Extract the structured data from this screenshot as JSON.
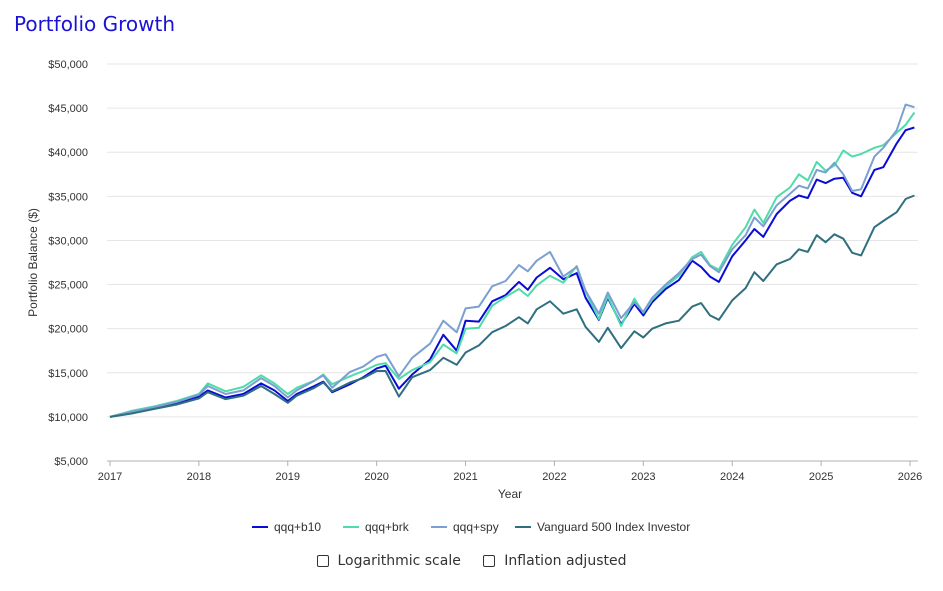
{
  "title": "Portfolio Growth",
  "controls": {
    "log_scale_label": "Logarithmic scale",
    "inflation_label": "Inflation adjusted",
    "log_scale_checked": false,
    "inflation_checked": false
  },
  "chart_data": {
    "type": "line",
    "xlabel": "Year",
    "ylabel": "Portfolio Balance ($)",
    "xlim": [
      2017.0,
      2026.0
    ],
    "ylim": [
      5000,
      50000
    ],
    "x_ticks": [
      2017,
      2018,
      2019,
      2020,
      2021,
      2022,
      2023,
      2024,
      2025,
      2026
    ],
    "y_ticks": [
      5000,
      10000,
      15000,
      20000,
      25000,
      30000,
      35000,
      40000,
      45000,
      50000
    ],
    "y_tick_labels": [
      "$5,000",
      "$10,000",
      "$15,000",
      "$20,000",
      "$25,000",
      "$30,000",
      "$35,000",
      "$40,000",
      "$45,000",
      "$50,000"
    ],
    "grid": "horizontal",
    "legend_position": "bottom",
    "series": [
      {
        "name": "qqq+b10",
        "color": "#0a0bd4",
        "points": [
          [
            2017.0,
            10000
          ],
          [
            2017.25,
            10500
          ],
          [
            2017.5,
            11000
          ],
          [
            2017.75,
            11500
          ],
          [
            2018.0,
            12300
          ],
          [
            2018.1,
            13000
          ],
          [
            2018.3,
            12200
          ],
          [
            2018.5,
            12600
          ],
          [
            2018.7,
            13800
          ],
          [
            2018.85,
            13000
          ],
          [
            2019.0,
            11800
          ],
          [
            2019.1,
            12600
          ],
          [
            2019.3,
            13500
          ],
          [
            2019.4,
            14000
          ],
          [
            2019.5,
            12800
          ],
          [
            2019.7,
            13700
          ],
          [
            2019.85,
            14500
          ],
          [
            2020.0,
            15500
          ],
          [
            2020.1,
            15800
          ],
          [
            2020.25,
            13200
          ],
          [
            2020.4,
            14800
          ],
          [
            2020.6,
            16500
          ],
          [
            2020.75,
            19300
          ],
          [
            2020.9,
            17500
          ],
          [
            2021.0,
            20900
          ],
          [
            2021.15,
            20800
          ],
          [
            2021.3,
            23100
          ],
          [
            2021.45,
            23800
          ],
          [
            2021.6,
            25300
          ],
          [
            2021.7,
            24400
          ],
          [
            2021.8,
            25800
          ],
          [
            2021.95,
            26900
          ],
          [
            2022.1,
            25600
          ],
          [
            2022.25,
            26300
          ],
          [
            2022.35,
            23500
          ],
          [
            2022.5,
            21000
          ],
          [
            2022.6,
            23500
          ],
          [
            2022.75,
            20500
          ],
          [
            2022.9,
            22800
          ],
          [
            2023.0,
            21500
          ],
          [
            2023.1,
            23000
          ],
          [
            2023.25,
            24500
          ],
          [
            2023.4,
            25500
          ],
          [
            2023.55,
            27700
          ],
          [
            2023.65,
            27000
          ],
          [
            2023.75,
            25900
          ],
          [
            2023.85,
            25300
          ],
          [
            2024.0,
            28200
          ],
          [
            2024.15,
            30000
          ],
          [
            2024.25,
            31300
          ],
          [
            2024.35,
            30400
          ],
          [
            2024.5,
            33000
          ],
          [
            2024.65,
            34500
          ],
          [
            2024.75,
            35100
          ],
          [
            2024.85,
            34800
          ],
          [
            2024.95,
            36900
          ],
          [
            2025.05,
            36500
          ],
          [
            2025.15,
            37000
          ],
          [
            2025.25,
            37100
          ],
          [
            2025.35,
            35400
          ],
          [
            2025.45,
            35000
          ],
          [
            2025.6,
            38000
          ],
          [
            2025.7,
            38300
          ],
          [
            2025.85,
            41000
          ],
          [
            2025.95,
            42500
          ],
          [
            2026.05,
            42800
          ]
        ]
      },
      {
        "name": "qqq+brk",
        "color": "#4fdca9",
        "points": [
          [
            2017.0,
            10000
          ],
          [
            2017.25,
            10700
          ],
          [
            2017.5,
            11200
          ],
          [
            2017.75,
            11800
          ],
          [
            2018.0,
            12600
          ],
          [
            2018.1,
            13800
          ],
          [
            2018.3,
            12900
          ],
          [
            2018.5,
            13400
          ],
          [
            2018.7,
            14700
          ],
          [
            2018.85,
            13800
          ],
          [
            2019.0,
            12600
          ],
          [
            2019.1,
            13300
          ],
          [
            2019.3,
            14100
          ],
          [
            2019.4,
            14800
          ],
          [
            2019.5,
            13700
          ],
          [
            2019.7,
            14600
          ],
          [
            2019.85,
            15200
          ],
          [
            2020.0,
            15900
          ],
          [
            2020.1,
            16100
          ],
          [
            2020.25,
            14300
          ],
          [
            2020.4,
            15300
          ],
          [
            2020.6,
            16200
          ],
          [
            2020.75,
            18200
          ],
          [
            2020.9,
            17200
          ],
          [
            2021.0,
            20000
          ],
          [
            2021.15,
            20100
          ],
          [
            2021.3,
            22600
          ],
          [
            2021.45,
            23600
          ],
          [
            2021.6,
            24500
          ],
          [
            2021.7,
            23700
          ],
          [
            2021.8,
            24900
          ],
          [
            2021.95,
            26000
          ],
          [
            2022.1,
            25200
          ],
          [
            2022.25,
            27100
          ],
          [
            2022.35,
            24200
          ],
          [
            2022.5,
            21100
          ],
          [
            2022.6,
            23700
          ],
          [
            2022.75,
            20300
          ],
          [
            2022.9,
            23400
          ],
          [
            2023.0,
            21800
          ],
          [
            2023.1,
            23300
          ],
          [
            2023.25,
            24800
          ],
          [
            2023.4,
            26000
          ],
          [
            2023.55,
            28100
          ],
          [
            2023.65,
            28700
          ],
          [
            2023.75,
            27200
          ],
          [
            2023.85,
            26700
          ],
          [
            2024.0,
            29500
          ],
          [
            2024.15,
            31500
          ],
          [
            2024.25,
            33500
          ],
          [
            2024.35,
            32000
          ],
          [
            2024.5,
            34900
          ],
          [
            2024.65,
            36000
          ],
          [
            2024.75,
            37500
          ],
          [
            2024.85,
            36800
          ],
          [
            2024.95,
            38900
          ],
          [
            2025.05,
            37900
          ],
          [
            2025.15,
            38500
          ],
          [
            2025.25,
            40200
          ],
          [
            2025.35,
            39500
          ],
          [
            2025.45,
            39800
          ],
          [
            2025.6,
            40500
          ],
          [
            2025.7,
            40800
          ],
          [
            2025.85,
            42200
          ],
          [
            2025.95,
            43100
          ],
          [
            2026.05,
            44500
          ]
        ]
      },
      {
        "name": "qqq+spy",
        "color": "#7c9fd2",
        "points": [
          [
            2017.0,
            10000
          ],
          [
            2017.25,
            10600
          ],
          [
            2017.5,
            11100
          ],
          [
            2017.75,
            11700
          ],
          [
            2018.0,
            12500
          ],
          [
            2018.1,
            13500
          ],
          [
            2018.3,
            12600
          ],
          [
            2018.5,
            13000
          ],
          [
            2018.7,
            14400
          ],
          [
            2018.85,
            13500
          ],
          [
            2019.0,
            12200
          ],
          [
            2019.1,
            13000
          ],
          [
            2019.3,
            14100
          ],
          [
            2019.4,
            14700
          ],
          [
            2019.5,
            13300
          ],
          [
            2019.7,
            15100
          ],
          [
            2019.85,
            15700
          ],
          [
            2020.0,
            16800
          ],
          [
            2020.1,
            17100
          ],
          [
            2020.25,
            14600
          ],
          [
            2020.4,
            16700
          ],
          [
            2020.6,
            18300
          ],
          [
            2020.75,
            20900
          ],
          [
            2020.9,
            19600
          ],
          [
            2021.0,
            22300
          ],
          [
            2021.15,
            22500
          ],
          [
            2021.3,
            24800
          ],
          [
            2021.45,
            25400
          ],
          [
            2021.6,
            27200
          ],
          [
            2021.7,
            26500
          ],
          [
            2021.8,
            27700
          ],
          [
            2021.95,
            28700
          ],
          [
            2022.1,
            25900
          ],
          [
            2022.25,
            27000
          ],
          [
            2022.35,
            24300
          ],
          [
            2022.5,
            21700
          ],
          [
            2022.6,
            24100
          ],
          [
            2022.75,
            21200
          ],
          [
            2022.9,
            23000
          ],
          [
            2023.0,
            21900
          ],
          [
            2023.1,
            23500
          ],
          [
            2023.25,
            25000
          ],
          [
            2023.4,
            26300
          ],
          [
            2023.55,
            27900
          ],
          [
            2023.65,
            28400
          ],
          [
            2023.75,
            27100
          ],
          [
            2023.85,
            26400
          ],
          [
            2024.0,
            29000
          ],
          [
            2024.15,
            30600
          ],
          [
            2024.25,
            32600
          ],
          [
            2024.35,
            31600
          ],
          [
            2024.5,
            34000
          ],
          [
            2024.65,
            35300
          ],
          [
            2024.75,
            36200
          ],
          [
            2024.85,
            35900
          ],
          [
            2024.95,
            38000
          ],
          [
            2025.05,
            37700
          ],
          [
            2025.15,
            38800
          ],
          [
            2025.25,
            37500
          ],
          [
            2025.35,
            35600
          ],
          [
            2025.45,
            35800
          ],
          [
            2025.6,
            39500
          ],
          [
            2025.7,
            40500
          ],
          [
            2025.85,
            42500
          ],
          [
            2025.95,
            45400
          ],
          [
            2026.05,
            45100
          ]
        ]
      },
      {
        "name": "Vanguard 500 Index Investor",
        "color": "#2f6f7f",
        "points": [
          [
            2017.0,
            10000
          ],
          [
            2017.25,
            10400
          ],
          [
            2017.5,
            10900
          ],
          [
            2017.75,
            11400
          ],
          [
            2018.0,
            12100
          ],
          [
            2018.1,
            12800
          ],
          [
            2018.3,
            12000
          ],
          [
            2018.5,
            12400
          ],
          [
            2018.7,
            13500
          ],
          [
            2018.85,
            12600
          ],
          [
            2019.0,
            11600
          ],
          [
            2019.1,
            12400
          ],
          [
            2019.3,
            13300
          ],
          [
            2019.4,
            13900
          ],
          [
            2019.5,
            12900
          ],
          [
            2019.7,
            13900
          ],
          [
            2019.85,
            14400
          ],
          [
            2020.0,
            15200
          ],
          [
            2020.1,
            15200
          ],
          [
            2020.25,
            12300
          ],
          [
            2020.4,
            14500
          ],
          [
            2020.6,
            15300
          ],
          [
            2020.75,
            16700
          ],
          [
            2020.9,
            15900
          ],
          [
            2021.0,
            17300
          ],
          [
            2021.15,
            18100
          ],
          [
            2021.3,
            19600
          ],
          [
            2021.45,
            20300
          ],
          [
            2021.6,
            21300
          ],
          [
            2021.7,
            20600
          ],
          [
            2021.8,
            22200
          ],
          [
            2021.95,
            23100
          ],
          [
            2022.1,
            21700
          ],
          [
            2022.25,
            22200
          ],
          [
            2022.35,
            20200
          ],
          [
            2022.5,
            18500
          ],
          [
            2022.6,
            20100
          ],
          [
            2022.75,
            17800
          ],
          [
            2022.9,
            19700
          ],
          [
            2023.0,
            19000
          ],
          [
            2023.1,
            20000
          ],
          [
            2023.25,
            20600
          ],
          [
            2023.4,
            20900
          ],
          [
            2023.55,
            22500
          ],
          [
            2023.65,
            22900
          ],
          [
            2023.75,
            21500
          ],
          [
            2023.85,
            21000
          ],
          [
            2024.0,
            23200
          ],
          [
            2024.15,
            24600
          ],
          [
            2024.25,
            26400
          ],
          [
            2024.35,
            25400
          ],
          [
            2024.5,
            27300
          ],
          [
            2024.65,
            27900
          ],
          [
            2024.75,
            29000
          ],
          [
            2024.85,
            28700
          ],
          [
            2024.95,
            30600
          ],
          [
            2025.05,
            29800
          ],
          [
            2025.15,
            30700
          ],
          [
            2025.25,
            30200
          ],
          [
            2025.35,
            28600
          ],
          [
            2025.45,
            28300
          ],
          [
            2025.6,
            31500
          ],
          [
            2025.7,
            32200
          ],
          [
            2025.85,
            33200
          ],
          [
            2025.95,
            34700
          ],
          [
            2026.05,
            35100
          ]
        ]
      }
    ]
  }
}
